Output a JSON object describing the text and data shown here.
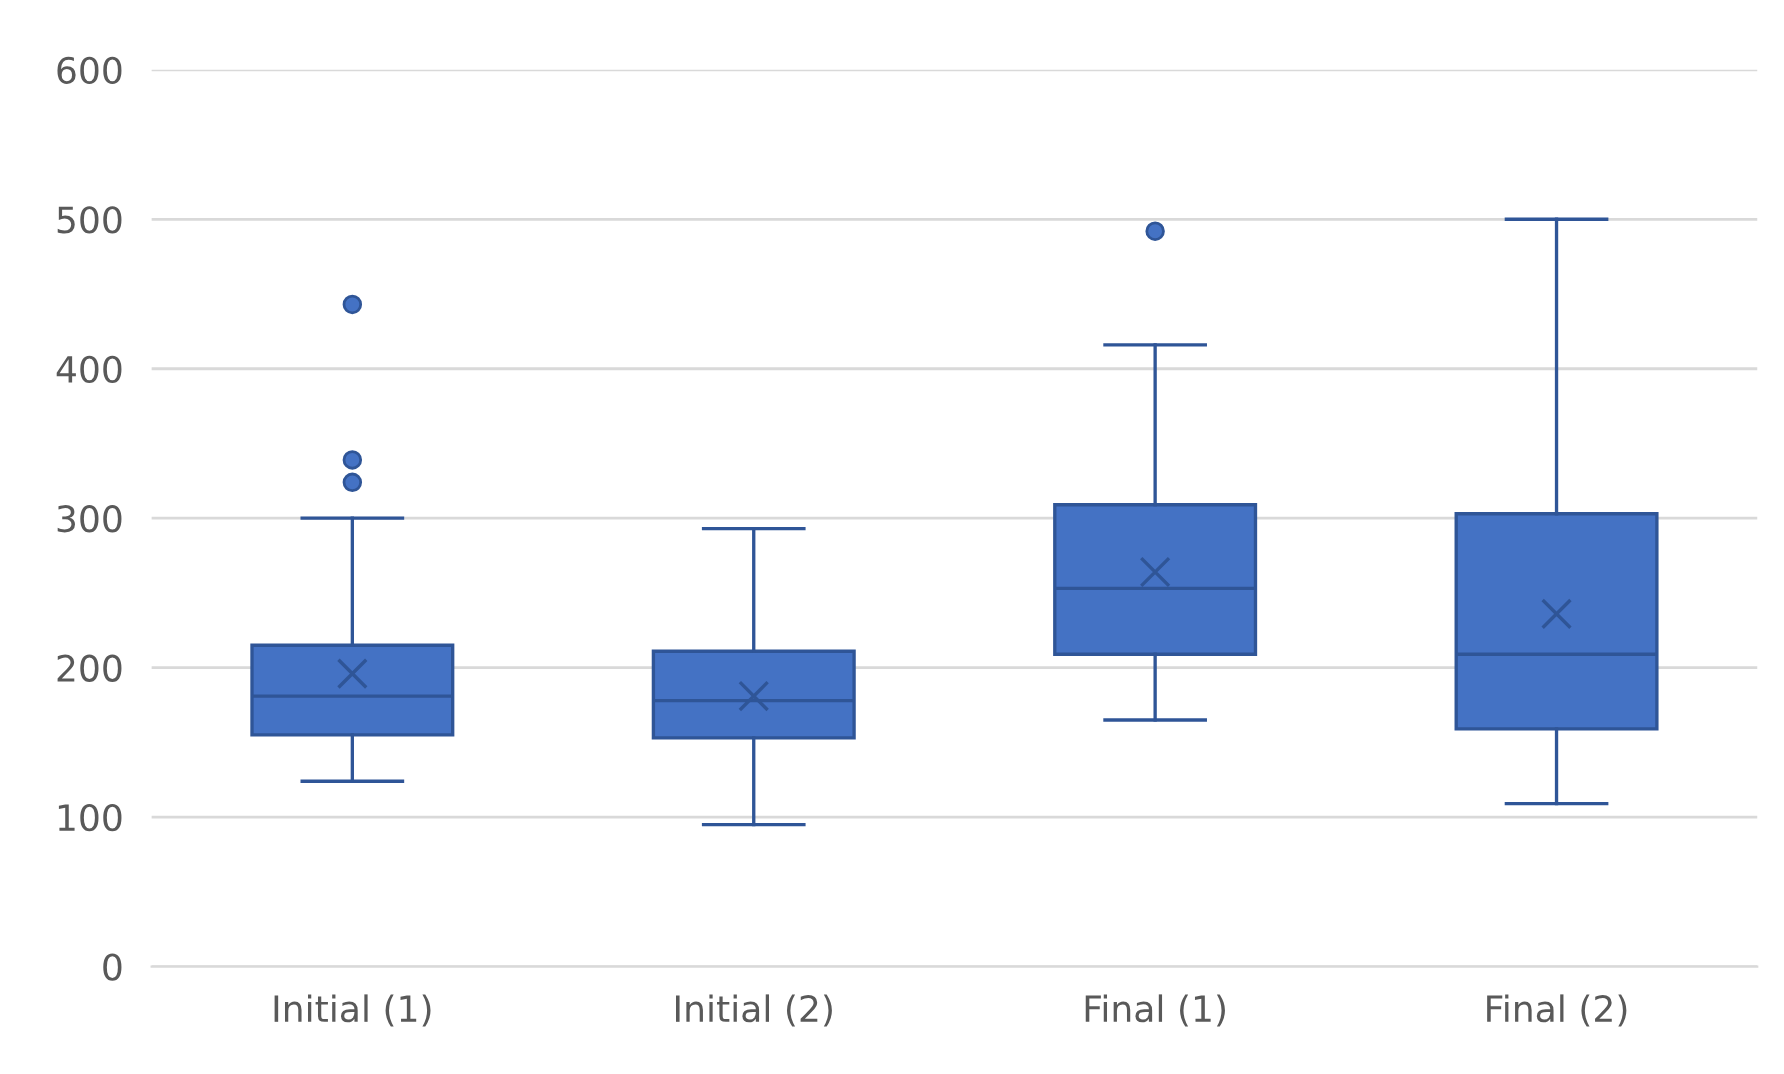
{
  "chart_data": {
    "type": "box",
    "categories": [
      "Initial (1)",
      "Initial (2)",
      "Final (1)",
      "Final (2)"
    ],
    "boxes": [
      {
        "low": 124,
        "q1": 155,
        "median": 181,
        "q3": 215,
        "high": 300,
        "mean": 196,
        "outliers": [
          443,
          339,
          324
        ]
      },
      {
        "low": 95,
        "q1": 153,
        "median": 178,
        "q3": 211,
        "high": 293,
        "mean": 181
      },
      {
        "low": 165,
        "q1": 209,
        "median": 253,
        "q3": 309,
        "high": 416,
        "mean": 264,
        "outliers": [
          492
        ]
      },
      {
        "low": 109,
        "q1": 159,
        "median": 209,
        "q3": 303,
        "high": 500,
        "mean": 236
      }
    ],
    "color": "#4472c4",
    "ylim": [
      0,
      600
    ],
    "yticks": [
      0,
      100,
      200,
      300,
      400,
      500,
      600
    ],
    "grid": "y"
  }
}
